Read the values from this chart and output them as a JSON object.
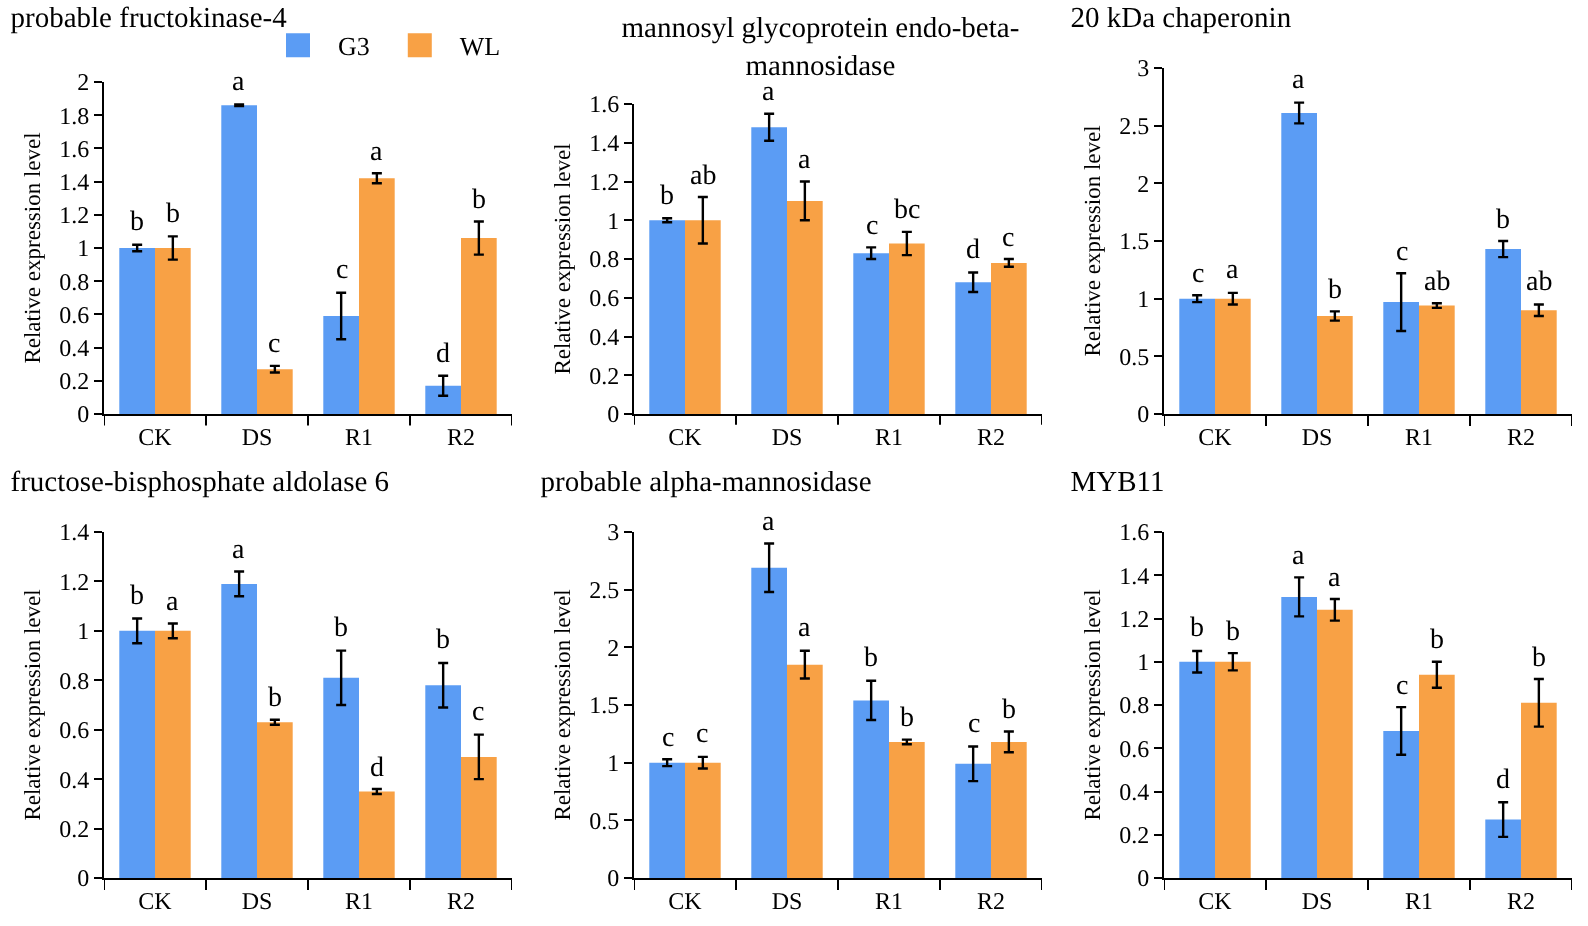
{
  "chart_data": [
    {
      "type": "bar",
      "title": "probable fructokinase-4",
      "ylabel": "Relative expression level",
      "categories": [
        "CK",
        "DS",
        "R1",
        "R2"
      ],
      "ylim": [
        0,
        2
      ],
      "yticks": [
        0,
        0.2,
        0.4,
        0.6,
        0.8,
        1,
        1.2,
        1.4,
        1.6,
        1.8,
        2
      ],
      "grid": false,
      "legend": "top right",
      "series": [
        {
          "name": "G3",
          "color": "#5b9cf4",
          "values": [
            1.0,
            1.86,
            0.59,
            0.17
          ],
          "errors": [
            0.02,
            0.005,
            0.14,
            0.06
          ],
          "value_labels": [
            "b",
            "a",
            "c",
            "d"
          ]
        },
        {
          "name": "WL",
          "color": "#f8a145",
          "values": [
            1.0,
            0.27,
            1.42,
            1.06
          ],
          "errors": [
            0.07,
            0.02,
            0.03,
            0.1
          ],
          "value_labels": [
            "b",
            "c",
            "a",
            "b"
          ]
        }
      ]
    },
    {
      "type": "bar",
      "title": "mannosyl glycoprotein endo-beta-\nmannosidase",
      "ylabel": "Relative expression level",
      "categories": [
        "CK",
        "DS",
        "R1",
        "R2"
      ],
      "ylim": [
        0,
        1.6
      ],
      "yticks": [
        0,
        0.2,
        0.4,
        0.6,
        0.8,
        1,
        1.2,
        1.4,
        1.6
      ],
      "grid": false,
      "series": [
        {
          "color": "#5b9cf4",
          "values": [
            1.0,
            1.48,
            0.83,
            0.68
          ],
          "errors": [
            0.01,
            0.07,
            0.03,
            0.05
          ],
          "value_labels": [
            "b",
            "a",
            "c",
            "d"
          ]
        },
        {
          "color": "#f8a145",
          "values": [
            1.0,
            1.1,
            0.88,
            0.78
          ],
          "errors": [
            0.12,
            0.1,
            0.06,
            0.02
          ],
          "value_labels": [
            "ab",
            "a",
            "bc",
            "c"
          ]
        }
      ]
    },
    {
      "type": "bar",
      "title": "20 kDa chaperonin",
      "ylabel": "Relative expression level",
      "categories": [
        "CK",
        "DS",
        "R1",
        "R2"
      ],
      "ylim": [
        0,
        3
      ],
      "yticks": [
        0,
        0.5,
        1,
        1.5,
        2,
        2.5,
        3
      ],
      "grid": false,
      "series": [
        {
          "color": "#5b9cf4",
          "values": [
            1.0,
            2.61,
            0.97,
            1.43
          ],
          "errors": [
            0.03,
            0.09,
            0.25,
            0.07
          ],
          "value_labels": [
            "c",
            "a",
            "c",
            "b"
          ]
        },
        {
          "color": "#f8a145",
          "values": [
            1.0,
            0.85,
            0.94,
            0.9
          ],
          "errors": [
            0.05,
            0.04,
            0.02,
            0.05
          ],
          "value_labels": [
            "a",
            "b",
            "ab",
            "ab"
          ]
        }
      ]
    },
    {
      "type": "bar",
      "title": "fructose-bisphosphate aldolase 6",
      "ylabel": "Relative expression level",
      "categories": [
        "CK",
        "DS",
        "R1",
        "R2"
      ],
      "ylim": [
        0,
        1.4
      ],
      "yticks": [
        0,
        0.2,
        0.4,
        0.6,
        0.8,
        1,
        1.2,
        1.4
      ],
      "grid": false,
      "series": [
        {
          "color": "#5b9cf4",
          "values": [
            1.0,
            1.19,
            0.81,
            0.78
          ],
          "errors": [
            0.05,
            0.05,
            0.11,
            0.09
          ],
          "value_labels": [
            "b",
            "a",
            "b",
            "b"
          ]
        },
        {
          "color": "#f8a145",
          "values": [
            1.0,
            0.63,
            0.35,
            0.49
          ],
          "errors": [
            0.03,
            0.01,
            0.01,
            0.09
          ],
          "value_labels": [
            "a",
            "b",
            "d",
            "c"
          ]
        }
      ]
    },
    {
      "type": "bar",
      "title": "probable alpha-mannosidase",
      "ylabel": "Relative expression level",
      "categories": [
        "CK",
        "DS",
        "R1",
        "R2"
      ],
      "ylim": [
        0,
        3
      ],
      "yticks": [
        0,
        0.5,
        1,
        1.5,
        2,
        2.5,
        3
      ],
      "grid": false,
      "series": [
        {
          "color": "#5b9cf4",
          "values": [
            1.0,
            2.69,
            1.54,
            0.99
          ],
          "errors": [
            0.03,
            0.21,
            0.17,
            0.15
          ],
          "value_labels": [
            "c",
            "a",
            "b",
            "c"
          ]
        },
        {
          "color": "#f8a145",
          "values": [
            1.0,
            1.85,
            1.18,
            1.18
          ],
          "errors": [
            0.05,
            0.12,
            0.02,
            0.09
          ],
          "value_labels": [
            "c",
            "a",
            "b",
            "b"
          ]
        }
      ]
    },
    {
      "type": "bar",
      "title": "MYB11",
      "ylabel": "Relative expression level",
      "categories": [
        "CK",
        "DS",
        "R1",
        "R2"
      ],
      "ylim": [
        0,
        1.6
      ],
      "yticks": [
        0,
        0.2,
        0.4,
        0.6,
        0.8,
        1,
        1.2,
        1.4,
        1.6
      ],
      "grid": false,
      "series": [
        {
          "color": "#5b9cf4",
          "values": [
            1.0,
            1.3,
            0.68,
            0.27
          ],
          "errors": [
            0.05,
            0.09,
            0.11,
            0.08
          ],
          "value_labels": [
            "b",
            "a",
            "c",
            "d"
          ]
        },
        {
          "color": "#f8a145",
          "values": [
            1.0,
            1.24,
            0.94,
            0.81
          ],
          "errors": [
            0.04,
            0.05,
            0.06,
            0.11
          ],
          "value_labels": [
            "b",
            "a",
            "b",
            "b"
          ]
        }
      ]
    }
  ]
}
